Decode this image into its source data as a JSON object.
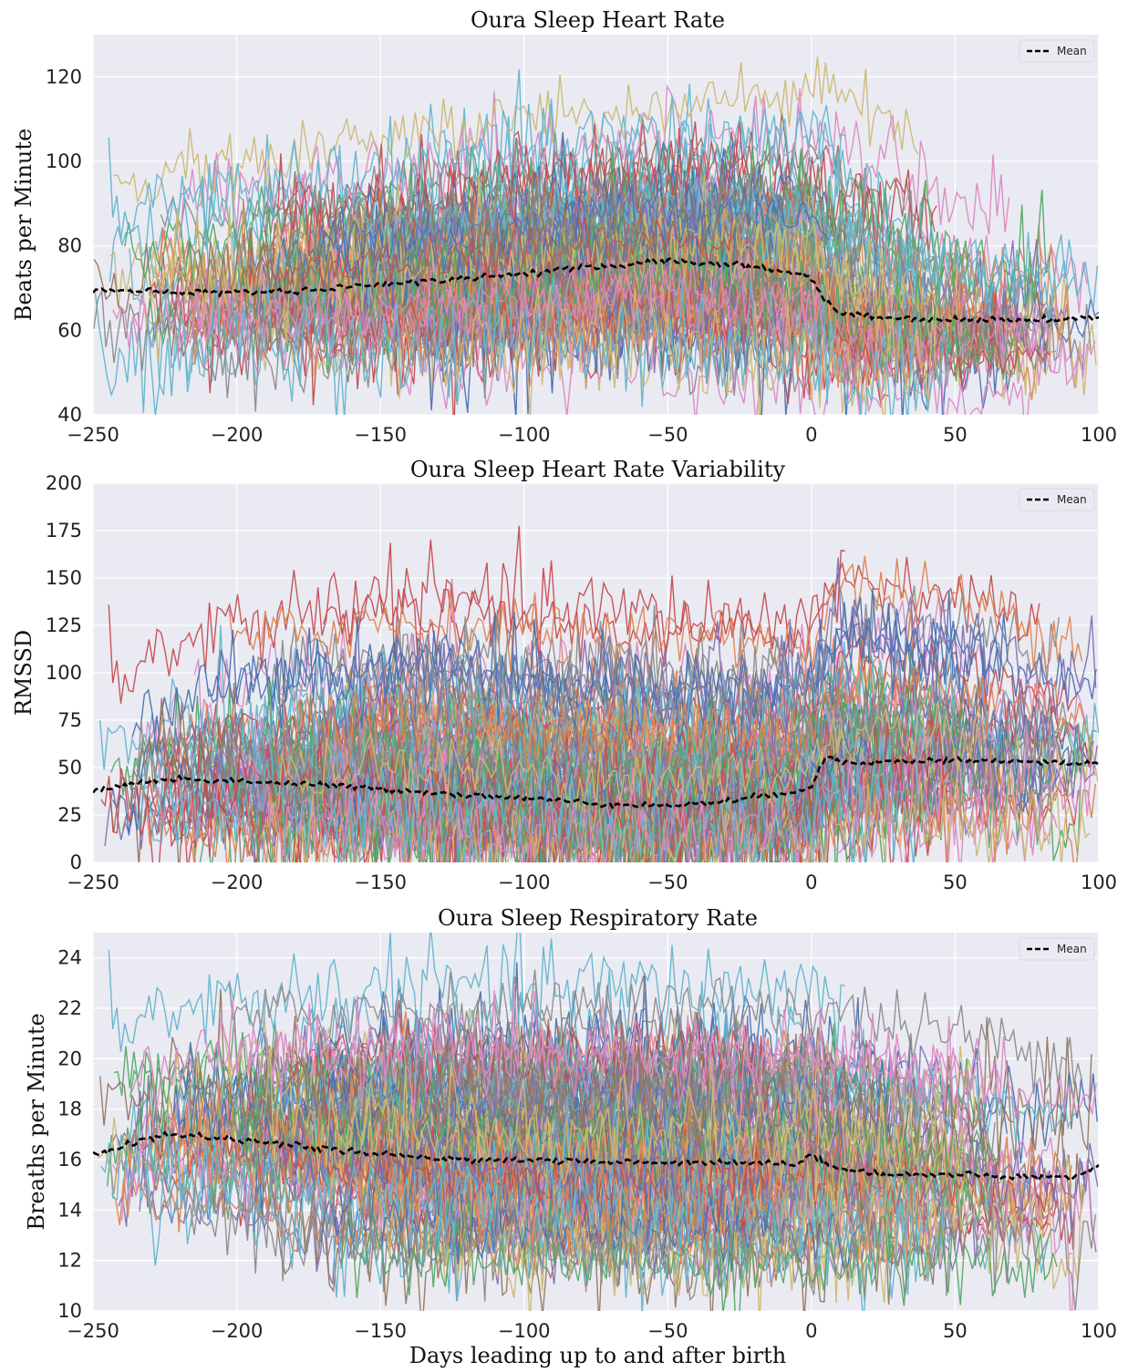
{
  "chart_data": [
    {
      "type": "line",
      "title": "Oura Sleep Heart Rate",
      "xlabel": "",
      "ylabel": "Beats per Minute",
      "xlim": [
        -250,
        100
      ],
      "ylim": [
        40,
        130
      ],
      "xticks": [
        -250,
        -200,
        -150,
        -100,
        -50,
        0,
        50,
        100
      ],
      "yticks": [
        40,
        60,
        80,
        100,
        120
      ],
      "xtick_labels": [
        "−250",
        "−200",
        "−150",
        "−100",
        "−50",
        "0",
        "50",
        "100"
      ],
      "ytick_labels": [
        "40",
        "60",
        "80",
        "100",
        "120"
      ],
      "grid": true,
      "legend": {
        "position": "top-right",
        "entries": [
          {
            "label": "Mean",
            "style": "dashed",
            "color": "#000000"
          }
        ]
      },
      "background": "#eaeaf2",
      "individual_series_note_count": 300,
      "mean_series": {
        "name": "Mean",
        "color": "#000000",
        "x": [
          -250,
          -225,
          -200,
          -175,
          -150,
          -125,
          -100,
          -75,
          -50,
          -25,
          -5,
          0,
          5,
          10,
          25,
          50,
          75,
          100
        ],
        "y": [
          69.5,
          69,
          69,
          69.5,
          71,
          72,
          73.5,
          75,
          76.5,
          75.5,
          73.5,
          72.5,
          67,
          64,
          63,
          62.5,
          62.5,
          63
        ]
      },
      "envelope": {
        "x": [
          -250,
          -200,
          -150,
          -100,
          -50,
          0,
          50,
          100
        ],
        "low": [
          52,
          52,
          52,
          55,
          55,
          50,
          46,
          46
        ],
        "high": [
          85,
          88,
          92,
          97,
          100,
          100,
          85,
          80
        ]
      }
    },
    {
      "type": "line",
      "title": "Oura Sleep Heart Rate Variability",
      "xlabel": "",
      "ylabel": "RMSSD",
      "xlim": [
        -250,
        100
      ],
      "ylim": [
        0,
        200
      ],
      "xticks": [
        -250,
        -200,
        -150,
        -100,
        -50,
        0,
        50,
        100
      ],
      "yticks": [
        0,
        25,
        50,
        75,
        100,
        125,
        150,
        175,
        200
      ],
      "xtick_labels": [
        "−250",
        "−200",
        "−150",
        "−100",
        "−50",
        "0",
        "50",
        "100"
      ],
      "ytick_labels": [
        "0",
        "25",
        "50",
        "75",
        "100",
        "125",
        "150",
        "175",
        "200"
      ],
      "grid": true,
      "legend": {
        "position": "top-right",
        "entries": [
          {
            "label": "Mean",
            "style": "dashed",
            "color": "#000000"
          }
        ]
      },
      "background": "#eaeaf2",
      "mean_series": {
        "name": "Mean",
        "color": "#000000",
        "x": [
          -250,
          -225,
          -200,
          -175,
          -150,
          -125,
          -100,
          -75,
          -50,
          -25,
          -5,
          0,
          5,
          10,
          25,
          50,
          75,
          100
        ],
        "y": [
          38,
          44,
          43,
          41,
          39,
          36,
          34,
          31,
          30,
          33,
          38,
          40,
          56,
          53,
          53,
          54,
          53,
          52
        ]
      },
      "envelope": {
        "x": [
          -250,
          -200,
          -150,
          -100,
          -50,
          0,
          10,
          50,
          100
        ],
        "low": [
          12,
          12,
          11,
          10,
          10,
          10,
          15,
          17,
          17
        ],
        "high": [
          85,
          110,
          120,
          115,
          110,
          110,
          140,
          130,
          110
        ]
      }
    },
    {
      "type": "line",
      "title": "Oura Sleep Respiratory Rate",
      "xlabel": "Days leading up to and after birth",
      "ylabel": "Breaths per Minute",
      "xlim": [
        -250,
        100
      ],
      "ylim": [
        10,
        25
      ],
      "xticks": [
        -250,
        -200,
        -150,
        -100,
        -50,
        0,
        50,
        100
      ],
      "yticks": [
        10,
        12,
        14,
        16,
        18,
        20,
        22,
        24
      ],
      "xtick_labels": [
        "−250",
        "−200",
        "−150",
        "−100",
        "−50",
        "0",
        "50",
        "100"
      ],
      "ytick_labels": [
        "10",
        "12",
        "14",
        "16",
        "18",
        "20",
        "22",
        "24"
      ],
      "grid": true,
      "legend": {
        "position": "top-right",
        "entries": [
          {
            "label": "Mean",
            "style": "dashed",
            "color": "#000000"
          }
        ]
      },
      "background": "#eaeaf2",
      "mean_series": {
        "name": "Mean",
        "color": "#000000",
        "x": [
          -250,
          -225,
          -200,
          -175,
          -150,
          -125,
          -100,
          -75,
          -50,
          -25,
          -5,
          0,
          5,
          25,
          50,
          75,
          90,
          100
        ],
        "y": [
          16.2,
          17.0,
          16.8,
          16.5,
          16.2,
          16.0,
          16.0,
          15.9,
          15.9,
          15.9,
          15.8,
          16.2,
          15.8,
          15.4,
          15.4,
          15.3,
          15.3,
          15.7
        ]
      },
      "envelope": {
        "x": [
          -250,
          -200,
          -150,
          -100,
          -50,
          0,
          50,
          100
        ],
        "low": [
          14,
          13.5,
          12.2,
          12.0,
          12.0,
          12.0,
          12.0,
          11.5
        ],
        "high": [
          20.5,
          21.2,
          21.5,
          21.5,
          21.5,
          21.5,
          20.5,
          19.5
        ]
      }
    }
  ],
  "palette": [
    "#4c72b0",
    "#dd8452",
    "#55a868",
    "#c44e52",
    "#8172b3",
    "#937860",
    "#da8bc3",
    "#8c8c8c",
    "#ccb974",
    "#64b5cd"
  ]
}
